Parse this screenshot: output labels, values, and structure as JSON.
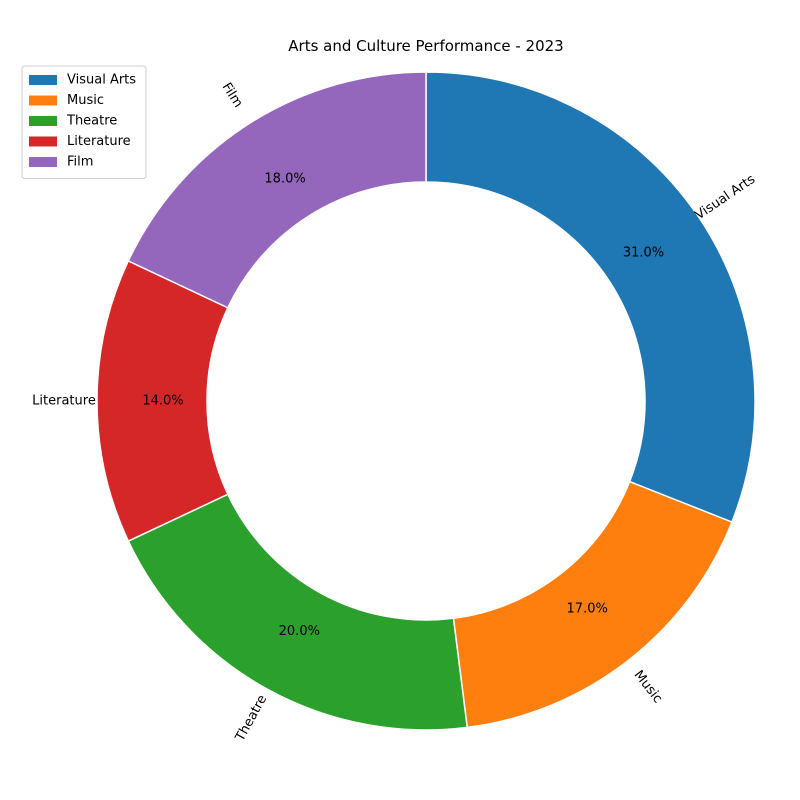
{
  "chart_data": {
    "type": "pie",
    "variant": "donut",
    "title": "Arts and Culture Performance - 2023",
    "categories": [
      "Visual Arts",
      "Music",
      "Theatre",
      "Literature",
      "Film"
    ],
    "values": [
      31.0,
      17.0,
      20.0,
      14.0,
      18.0
    ],
    "percent_labels": [
      "31.0%",
      "17.0%",
      "20.0%",
      "14.0%",
      "18.0%"
    ],
    "colors": [
      "#1f77b4",
      "#ff7f0e",
      "#2ca02c",
      "#d62728",
      "#9467bd"
    ],
    "start_angle_deg": 90,
    "direction": "clockwise",
    "legend": {
      "placement": "top-left",
      "entries": [
        "Visual Arts",
        "Music",
        "Theatre",
        "Literature",
        "Film"
      ]
    }
  }
}
